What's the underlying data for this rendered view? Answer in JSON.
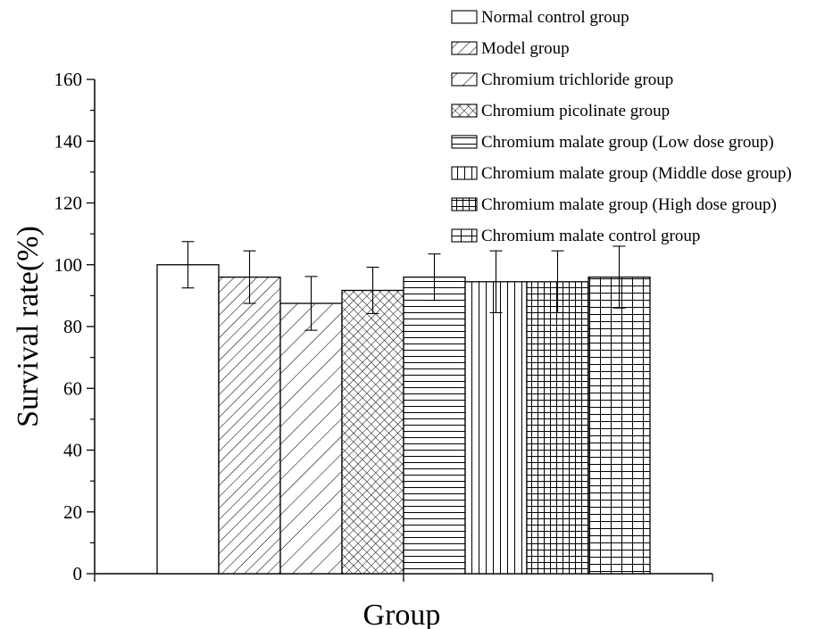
{
  "chart_data": {
    "type": "bar",
    "title": "",
    "xlabel": "Group",
    "ylabel": "Survival rate(%)",
    "ylim": [
      0,
      160
    ],
    "yticks": [
      0,
      20,
      40,
      60,
      80,
      100,
      120,
      140,
      160
    ],
    "grid": false,
    "legend_position": "top-right",
    "series": [
      {
        "name": "Normal control group",
        "value": 100,
        "error": 7.5,
        "pattern": "none"
      },
      {
        "name": "Model group",
        "value": 96,
        "error": 8.5,
        "pattern": "diag-dense"
      },
      {
        "name": "Chromium trichloride group",
        "value": 87.5,
        "error": 8.7,
        "pattern": "diag-sparse"
      },
      {
        "name": "Chromium picolinate group",
        "value": 91.7,
        "error": 7.5,
        "pattern": "crosshatch-diag"
      },
      {
        "name": "Chromium malate group (Low dose group)",
        "value": 96,
        "error": 7.5,
        "pattern": "horizontal"
      },
      {
        "name": "Chromium malate group (Middle dose group)",
        "value": 94.5,
        "error": 10,
        "pattern": "vertical"
      },
      {
        "name": "Chromium malate group (High dose group)",
        "value": 94.5,
        "error": 10,
        "pattern": "grid"
      },
      {
        "name": "Chromium malate control group",
        "value": 96,
        "error": 10,
        "pattern": "grid-wide"
      }
    ]
  }
}
